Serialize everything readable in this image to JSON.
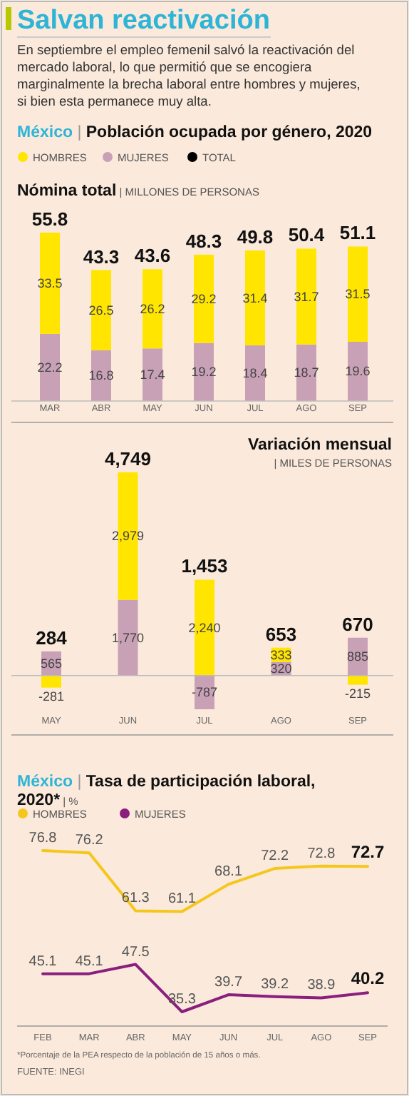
{
  "chart_data": [
    {
      "type": "other",
      "title": "Salvan reactivación",
      "subtitle": "En septiembre el empleo femenil salvó la reactivación del mercado laboral, lo que permitió que se encogiera marginalmente la brecha laboral entre hombres y mujeres, si bien esta permanece muy alta."
    },
    {
      "type": "bar",
      "stacked": true,
      "data_labels": true,
      "legend": "top left",
      "annotations": [
        "México | Población ocupada por género, 2020"
      ],
      "title": "Nómina total",
      "subtitle": "| MILLONES DE PERSONAS",
      "categories": [
        "MAR",
        "ABR",
        "MAY",
        "JUN",
        "JUL",
        "AGO",
        "SEP"
      ],
      "series": [
        {
          "name": "MUJERES",
          "color": "#c9a1b6",
          "values": [
            22.2,
            16.8,
            17.4,
            19.2,
            18.4,
            18.7,
            19.6
          ]
        },
        {
          "name": "HOMBRES",
          "color": "#ffe500",
          "values": [
            33.5,
            26.5,
            26.2,
            29.2,
            31.4,
            31.7,
            31.5
          ]
        },
        {
          "name": "TOTAL",
          "color": "#000000",
          "values": [
            null,
            null,
            null,
            null,
            null,
            null,
            null
          ]
        }
      ],
      "totals": [
        "55.8",
        "43.3",
        "43.6",
        "48.3",
        "49.8",
        "50.4",
        "51.1"
      ]
    },
    {
      "type": "bar",
      "stacked": true,
      "title": "Variación mensual",
      "subtitle": "| MILES DE PERSONAS",
      "categories": [
        "MAY",
        "JUN",
        "JUL",
        "AGO",
        "SEP"
      ],
      "series": [
        {
          "color": "#c9a1b6",
          "values": [
            565,
            1770,
            -787,
            320,
            885
          ],
          "value_labels": [
            "565",
            "1,770",
            "-787",
            "320",
            "885"
          ]
        },
        {
          "color": "#ffe500",
          "values": [
            -281,
            2979,
            2240,
            333,
            -215
          ],
          "value_labels": [
            "-281",
            "2,979",
            "2,240",
            "333",
            "-215"
          ]
        }
      ],
      "totals": [
        "284",
        "4,749",
        "1,453",
        "653",
        "670"
      ]
    },
    {
      "type": "line",
      "data_labels": true,
      "legend": "top left",
      "marker": "none",
      "line_style": "solid",
      "title": "México | Tasa de participación laboral, 2020*",
      "subtitle": "| %",
      "categories": [
        "FEB",
        "MAR",
        "ABR",
        "MAY",
        "JUN",
        "JUL",
        "AGO",
        "SEP"
      ],
      "series": [
        {
          "name": "HOMBRES",
          "color": "#f5c61c",
          "values": [
            76.8,
            76.2,
            61.3,
            61.1,
            68.1,
            72.2,
            72.8,
            72.7
          ]
        },
        {
          "name": "MUJERES",
          "color": "#8a1f7e",
          "values": [
            45.1,
            45.1,
            47.5,
            35.3,
            39.7,
            39.2,
            38.9,
            40.2
          ]
        }
      ],
      "annotations": [
        "*Porcentaje de la PEA respecto de la población de 15 años o más.",
        "FUENTE: INEGI"
      ]
    }
  ]
}
